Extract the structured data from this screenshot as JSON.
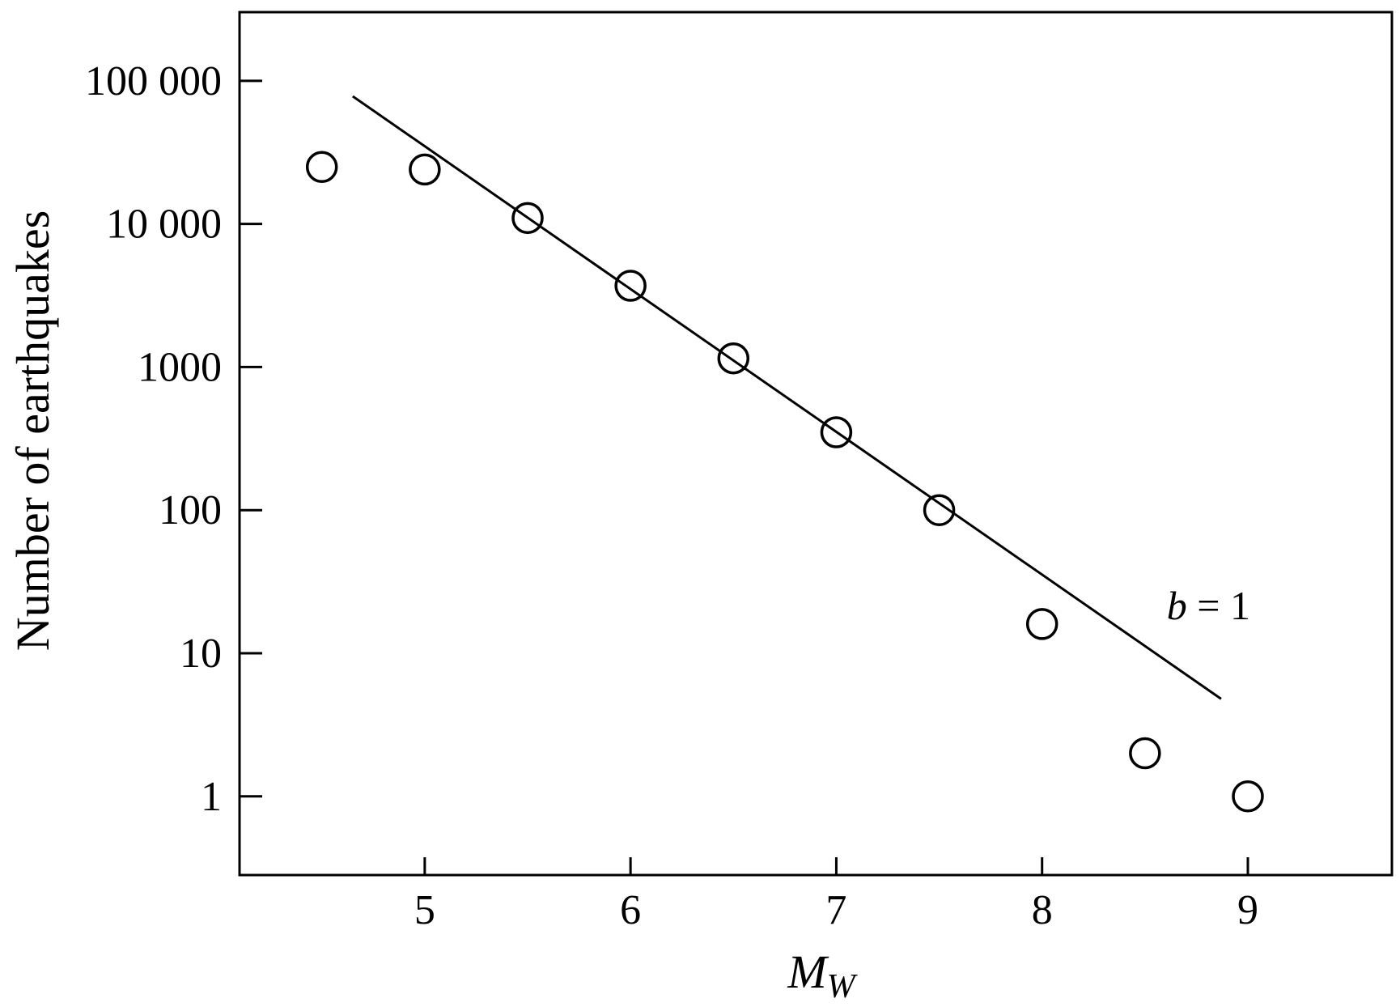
{
  "chart_data": {
    "type": "scatter",
    "title": "",
    "xlabel": {
      "main": "M",
      "subscript": "W"
    },
    "ylabel": "Number of earthquakes",
    "xlim": [
      4.1,
      9.7
    ],
    "ylim_log10": [
      -0.55,
      5.48
    ],
    "yscale": "log",
    "grid": false,
    "legend": "none",
    "x_ticks": [
      {
        "value": 5,
        "label": "5"
      },
      {
        "value": 6,
        "label": "6"
      },
      {
        "value": 7,
        "label": "7"
      },
      {
        "value": 8,
        "label": "8"
      },
      {
        "value": 9,
        "label": "9"
      }
    ],
    "y_ticks": [
      {
        "value": 1,
        "label": "1"
      },
      {
        "value": 10,
        "label": "10"
      },
      {
        "value": 100,
        "label": "100"
      },
      {
        "value": 1000,
        "label": "1000"
      },
      {
        "value": 10000,
        "label": "10 000"
      },
      {
        "value": 100000,
        "label": "100 000"
      }
    ],
    "series": [
      {
        "marker": "open-circle",
        "x": [
          4.5,
          5.0,
          5.5,
          6.0,
          6.5,
          7.0,
          7.5,
          8.0,
          8.5,
          9.0
        ],
        "y": [
          25000,
          24000,
          11000,
          3700,
          1150,
          350,
          100,
          16,
          2,
          1
        ]
      }
    ],
    "fit_line": {
      "x": [
        4.65,
        8.87
      ],
      "y": [
        78000,
        4.8
      ],
      "label": "b = 1",
      "label_italic": "b",
      "label_rest": " = 1"
    }
  }
}
